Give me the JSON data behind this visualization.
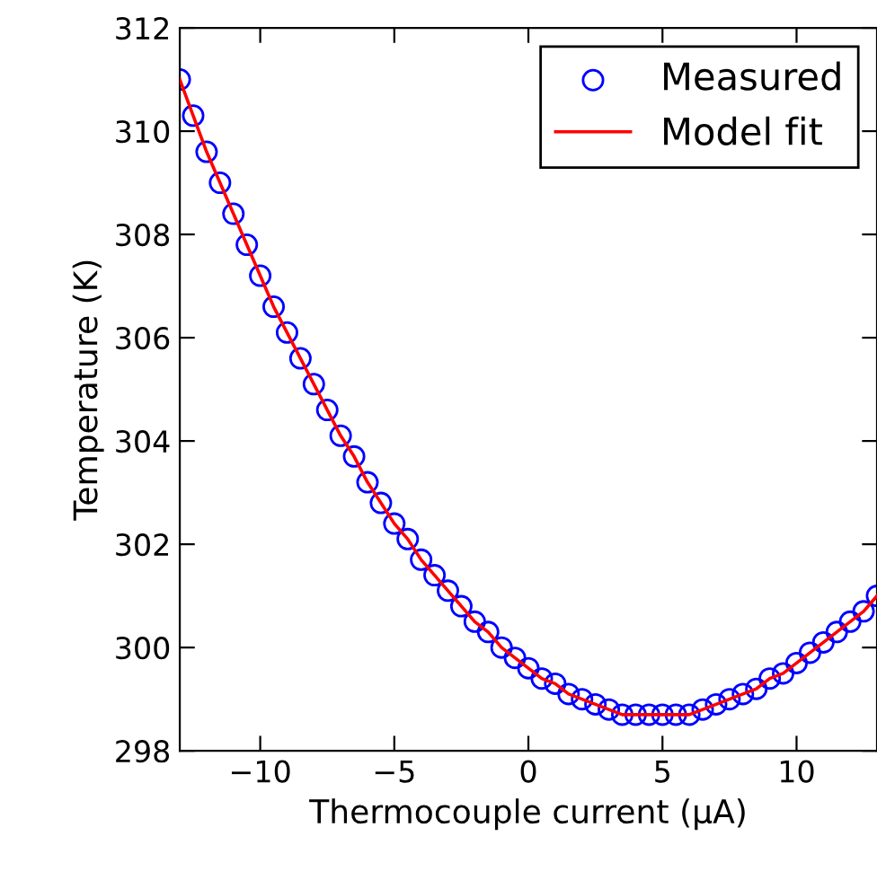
{
  "chart_data": {
    "type": "line",
    "xlabel": "Thermocouple current (μA)",
    "ylabel": "Temperature (K)",
    "x": [
      -13,
      -12.5,
      -12,
      -11.5,
      -11,
      -10.5,
      -10,
      -9.5,
      -9,
      -8.5,
      -8,
      -7.5,
      -7,
      -6.5,
      -6,
      -5.5,
      -5,
      -4.5,
      -4,
      -3.5,
      -3,
      -2.5,
      -2,
      -1.5,
      -1,
      -0.5,
      0,
      0.5,
      1,
      1.5,
      2,
      2.5,
      3,
      3.5,
      4,
      4.5,
      5,
      5.5,
      6,
      6.5,
      7,
      7.5,
      8,
      8.5,
      9,
      9.5,
      10,
      10.5,
      11,
      11.5,
      12,
      12.5,
      13
    ],
    "series": [
      {
        "name": "Measured",
        "type": "scatter",
        "marker": "circle",
        "color": "#0000ff",
        "values": [
          311.0,
          310.3,
          309.6,
          309.0,
          308.4,
          307.8,
          307.2,
          306.6,
          306.1,
          305.6,
          305.1,
          304.6,
          304.1,
          303.7,
          303.2,
          302.8,
          302.4,
          302.1,
          301.7,
          301.4,
          301.1,
          300.8,
          300.5,
          300.3,
          300.0,
          299.8,
          299.6,
          299.4,
          299.3,
          299.1,
          299.0,
          298.9,
          298.8,
          298.7,
          298.7,
          298.7,
          298.7,
          298.7,
          298.7,
          298.8,
          298.9,
          299.0,
          299.1,
          299.2,
          299.4,
          299.5,
          299.7,
          299.9,
          300.1,
          300.3,
          300.5,
          300.7,
          301.0
        ]
      },
      {
        "name": "Model fit",
        "marker": "none",
        "line_style": "solid",
        "color": "#ff0000",
        "values": [
          311.0,
          310.3,
          309.6,
          309.0,
          308.4,
          307.8,
          307.2,
          306.6,
          306.1,
          305.6,
          305.1,
          304.6,
          304.1,
          303.7,
          303.2,
          302.8,
          302.4,
          302.1,
          301.7,
          301.4,
          301.1,
          300.8,
          300.5,
          300.3,
          300.0,
          299.8,
          299.6,
          299.4,
          299.3,
          299.1,
          299.0,
          298.9,
          298.8,
          298.7,
          298.7,
          298.7,
          298.7,
          298.7,
          298.7,
          298.8,
          298.9,
          299.0,
          299.1,
          299.2,
          299.4,
          299.5,
          299.7,
          299.9,
          300.1,
          300.3,
          300.5,
          300.7,
          301.0
        ]
      }
    ],
    "xlim": [
      -13,
      13
    ],
    "ylim": [
      298,
      312
    ],
    "xticks": [
      {
        "value": -10,
        "label": "−10"
      },
      {
        "value": -5,
        "label": "−5"
      },
      0,
      5,
      10
    ],
    "yticks": [
      298,
      300,
      302,
      304,
      306,
      308,
      310,
      312
    ],
    "grid": false,
    "legend": "top right"
  }
}
